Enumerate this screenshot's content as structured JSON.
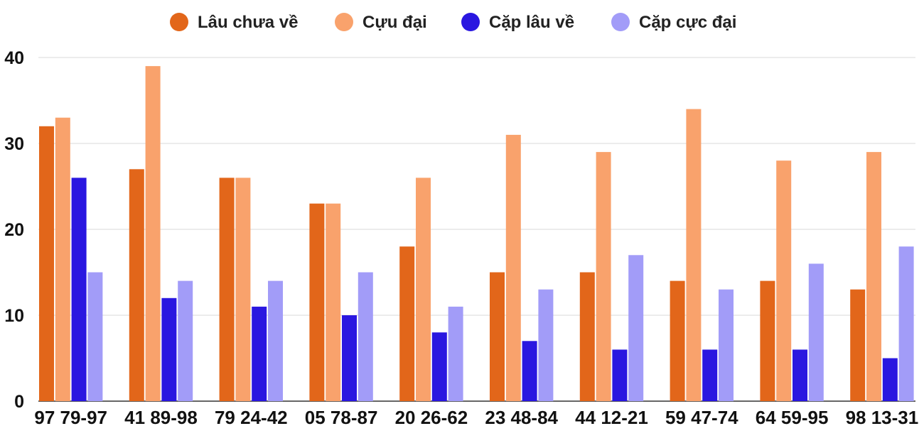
{
  "chart_data": {
    "type": "bar",
    "categories": [
      "97 79-97",
      "41 89-98",
      "79 24-42",
      "05 78-87",
      "20 26-62",
      "23 48-84",
      "44 12-21",
      "59 47-74",
      "64 59-95",
      "98 13-31"
    ],
    "series": [
      {
        "name": "Lâu chưa về",
        "color": "#e2661a",
        "values": [
          32,
          27,
          26,
          23,
          18,
          15,
          15,
          14,
          14,
          13
        ]
      },
      {
        "name": "Cựu đại",
        "color": "#f9a26c",
        "values": [
          33,
          39,
          26,
          23,
          26,
          31,
          29,
          34,
          28,
          29
        ]
      },
      {
        "name": "Cặp lâu về",
        "color": "#2a17e0",
        "values": [
          26,
          12,
          11,
          10,
          8,
          7,
          6,
          6,
          6,
          5
        ]
      },
      {
        "name": "Cặp cực đại",
        "color": "#a29cf8",
        "values": [
          15,
          14,
          14,
          15,
          11,
          13,
          17,
          13,
          16,
          18
        ]
      }
    ],
    "yticks": [
      "0",
      "10",
      "20",
      "30",
      "40"
    ],
    "ylim": [
      0,
      40
    ],
    "grid": true,
    "legend": "top-center"
  }
}
